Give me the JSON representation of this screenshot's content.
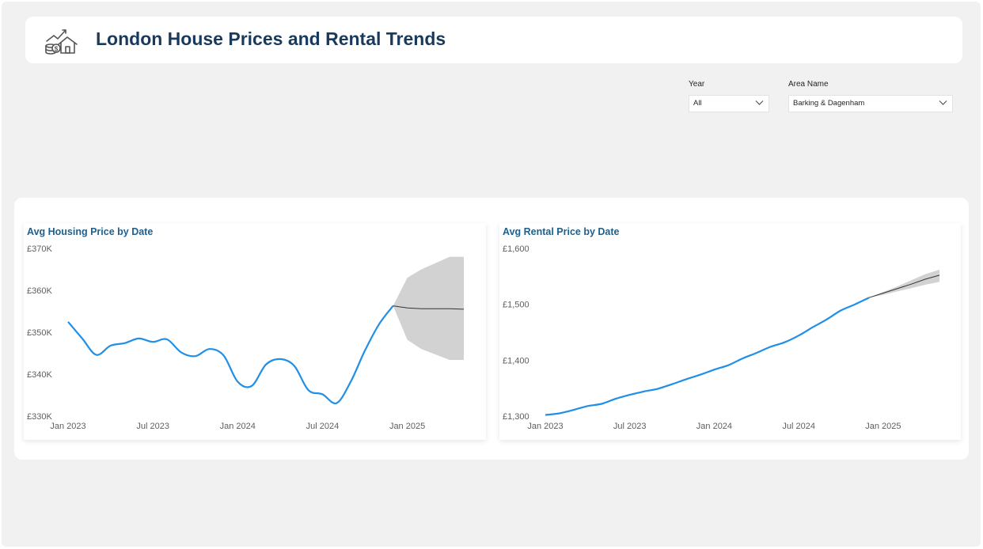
{
  "header": {
    "title": "London House Prices and Rental Trends",
    "icon": "house-price-growth-icon"
  },
  "slicers": {
    "year": {
      "label": "Year",
      "value": "All"
    },
    "area": {
      "label": "Area Name",
      "value": "Barking & Dagenham"
    }
  },
  "colors": {
    "line": "#1f8fe8",
    "forecast": "#333333",
    "band": "#d2d2d2",
    "title": "#1a3a5c"
  },
  "chart_data": [
    {
      "type": "line",
      "title": "Avg Housing Price by Date",
      "x_ticks": [
        "Jan 2023",
        "Jul 2023",
        "Jan 2024",
        "Jul 2024",
        "Jan 2025"
      ],
      "y_ticks": [
        "£330K",
        "£340K",
        "£350K",
        "£360K",
        "£370K"
      ],
      "ylim": [
        330000,
        370000
      ],
      "xlim": [
        "2023-01",
        "2025-05"
      ],
      "grid": false,
      "series": [
        {
          "x": [
            "2023-01",
            "2023-02",
            "2023-03",
            "2023-04",
            "2023-05",
            "2023-06",
            "2023-07",
            "2023-08",
            "2023-09",
            "2023-10",
            "2023-11",
            "2023-12",
            "2024-01",
            "2024-02",
            "2024-03",
            "2024-04",
            "2024-05",
            "2024-06",
            "2024-07",
            "2024-08",
            "2024-09",
            "2024-10",
            "2024-11",
            "2024-12"
          ],
          "values": [
            352500,
            348500,
            344600,
            346800,
            347400,
            348500,
            347700,
            348300,
            345200,
            344300,
            346000,
            344500,
            338200,
            337200,
            342300,
            343600,
            342000,
            336200,
            335200,
            333100,
            338200,
            345600,
            351900,
            356300
          ]
        }
      ],
      "forecast": {
        "x": [
          "2024-12",
          "2025-01",
          "2025-02",
          "2025-03",
          "2025-04",
          "2025-05"
        ],
        "values": [
          356300,
          355800,
          355600,
          355600,
          355600,
          355500
        ],
        "upper": [
          356300,
          363000,
          365000,
          366500,
          368000,
          368000
        ],
        "lower": [
          356300,
          348200,
          346000,
          344700,
          343400,
          343400
        ]
      }
    },
    {
      "type": "line",
      "title": "Avg Rental Price by Date",
      "x_ticks": [
        "Jan 2023",
        "Jul 2023",
        "Jan 2024",
        "Jul 2024",
        "Jan 2025"
      ],
      "y_ticks": [
        "£1,300",
        "£1,400",
        "£1,500",
        "£1,600"
      ],
      "ylim": [
        1300,
        1600
      ],
      "xlim": [
        "2023-01",
        "2025-05"
      ],
      "grid": false,
      "series": [
        {
          "x": [
            "2023-01",
            "2023-02",
            "2023-03",
            "2023-04",
            "2023-05",
            "2023-06",
            "2023-07",
            "2023-08",
            "2023-09",
            "2023-10",
            "2023-11",
            "2023-12",
            "2024-01",
            "2024-02",
            "2024-03",
            "2024-04",
            "2024-05",
            "2024-06",
            "2024-07",
            "2024-08",
            "2024-09",
            "2024-10",
            "2024-11",
            "2024-12"
          ],
          "values": [
            1302,
            1305,
            1311,
            1318,
            1322,
            1331,
            1338,
            1344,
            1349,
            1357,
            1366,
            1374,
            1383,
            1391,
            1403,
            1413,
            1424,
            1432,
            1444,
            1459,
            1473,
            1489,
            1500,
            1512
          ]
        }
      ],
      "forecast": {
        "x": [
          "2024-12",
          "2025-01",
          "2025-02",
          "2025-03",
          "2025-04",
          "2025-05"
        ],
        "values": [
          1512,
          1520,
          1528,
          1536,
          1545,
          1552
        ],
        "upper": [
          1512,
          1522,
          1532,
          1543,
          1554,
          1562
        ],
        "lower": [
          1512,
          1517,
          1523,
          1529,
          1535,
          1540
        ]
      }
    }
  ]
}
